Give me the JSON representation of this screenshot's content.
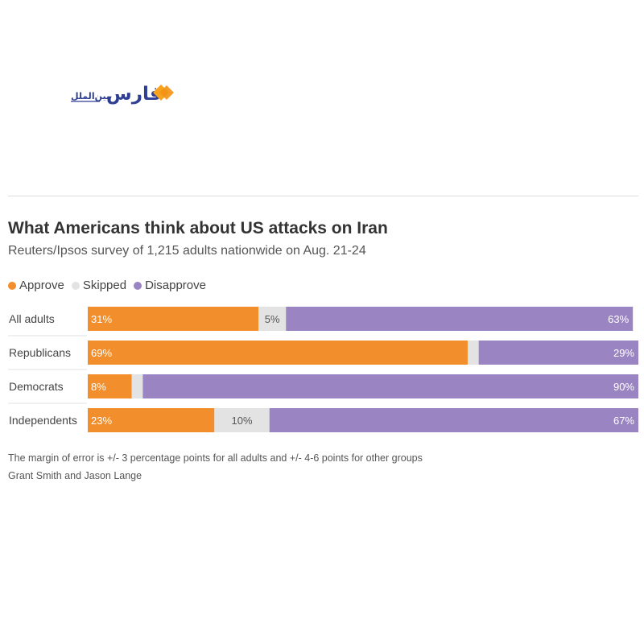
{
  "logo": {
    "text_fa": "فارس",
    "subtext_fa": "بین‌الملل"
  },
  "colors": {
    "approve": "#f28e2b",
    "skipped": "#e3e3e3",
    "disapprove": "#9a84c2",
    "logo_orange": "#f7a31c",
    "logo_blue": "#2d3e93"
  },
  "chart_data": {
    "type": "bar",
    "orientation": "horizontal",
    "stacked": true,
    "title": "What Americans think about US attacks on Iran",
    "subtitle": "Reuters/Ipsos survey of 1,215 adults nationwide on Aug. 21-24",
    "categories": [
      "All adults",
      "Republicans",
      "Democrats",
      "Independents"
    ],
    "series": [
      {
        "name": "Approve",
        "values": [
          31,
          69,
          8,
          23
        ],
        "labels": [
          "31%",
          "69%",
          "8%",
          "23%"
        ]
      },
      {
        "name": "Skipped",
        "values": [
          5,
          2,
          2,
          10
        ],
        "labels": [
          "5%",
          "",
          "",
          "10%"
        ]
      },
      {
        "name": "Disapprove",
        "values": [
          63,
          29,
          90,
          67
        ],
        "labels": [
          "63%",
          "29%",
          "90%",
          "67%"
        ]
      }
    ],
    "legend": "top-left",
    "grid": false,
    "xlim": [
      0,
      100
    ]
  },
  "footer": {
    "note": "The margin of error is +/- 3 percentage points for all adults and +/- 4-6 points for other groups",
    "credit": "Grant Smith and Jason Lange"
  }
}
